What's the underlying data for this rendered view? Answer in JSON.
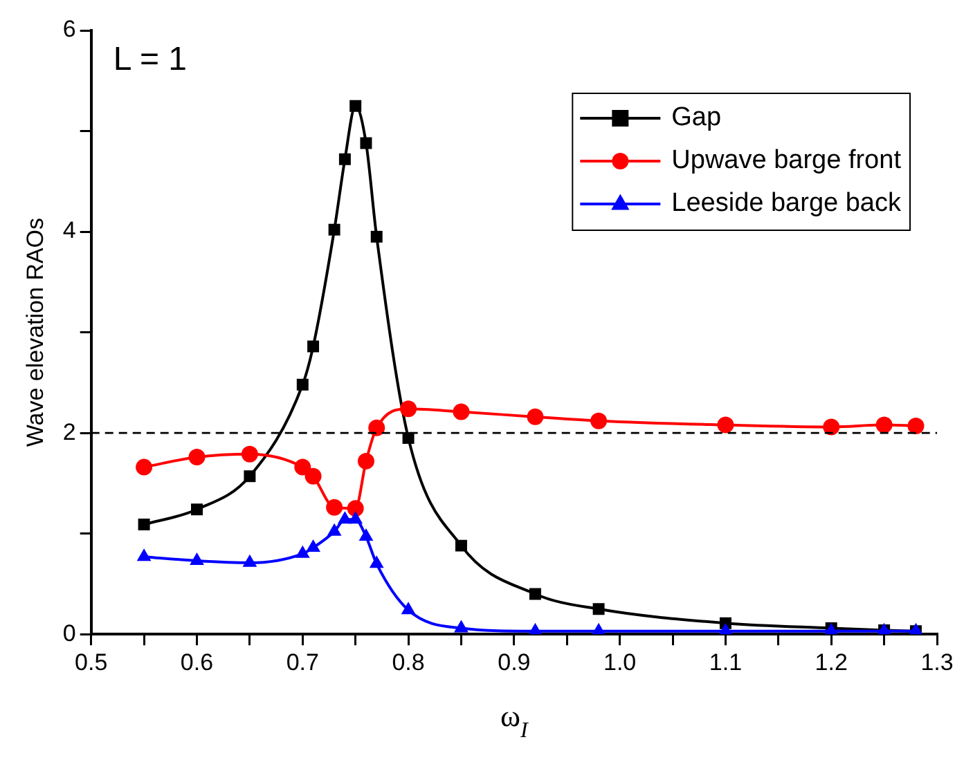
{
  "chart_data": {
    "type": "line",
    "xlabel": "ω$_{I}$",
    "ylabel": "Wave elevation RAOs",
    "annotations": [
      "L = 1"
    ],
    "xlim": [
      0.5,
      1.3
    ],
    "xticks": [
      0.5,
      {
        "value": 0.55,
        "label": null
      },
      0.6,
      {
        "value": 0.65,
        "label": null
      },
      0.7,
      {
        "value": 0.75,
        "label": null
      },
      0.8,
      {
        "value": 0.85,
        "label": null
      },
      0.9,
      {
        "value": 0.95,
        "label": null
      },
      {
        "value": 1,
        "label": "1.0"
      },
      {
        "value": 1.05,
        "label": null
      },
      1.1,
      {
        "value": 1.15,
        "label": null
      },
      1.2,
      {
        "value": 1.25,
        "label": null
      },
      1.3
    ],
    "ylim": [
      0,
      6
    ],
    "yticks": [
      0,
      {
        "value": 1,
        "label": null
      },
      2,
      {
        "value": 3,
        "label": null
      },
      4,
      {
        "value": 5,
        "label": null
      },
      6
    ],
    "series": [
      {
        "name": "Gap",
        "color": "#000000",
        "marker": "square",
        "x": [
          0.55,
          0.6,
          0.65,
          0.7,
          0.71,
          0.73,
          0.74,
          0.75,
          0.76,
          0.77,
          0.8,
          0.85,
          0.92,
          0.98,
          1.1,
          1.2,
          1.25,
          1.28
        ],
        "values": [
          1.09,
          1.24,
          1.57,
          2.48,
          2.86,
          4.02,
          4.72,
          5.25,
          4.88,
          3.95,
          1.95,
          0.88,
          0.4,
          0.25,
          0.11,
          0.06,
          0.04,
          0.03
        ]
      },
      {
        "name": "Upwave barge front",
        "color": "#ff0000",
        "marker": "circle",
        "x": [
          0.55,
          0.6,
          0.65,
          0.7,
          0.71,
          0.73,
          0.75,
          0.76,
          0.77,
          0.8,
          0.85,
          0.92,
          0.98,
          1.1,
          1.2,
          1.25,
          1.28
        ],
        "values": [
          1.66,
          1.76,
          1.79,
          1.66,
          1.57,
          1.26,
          1.25,
          1.72,
          2.05,
          2.24,
          2.21,
          2.16,
          2.12,
          2.08,
          2.06,
          2.08,
          2.07
        ]
      },
      {
        "name": "Leeside barge back",
        "color": "#0000ff",
        "marker": "triangle",
        "x": [
          0.55,
          0.6,
          0.65,
          0.7,
          0.71,
          0.73,
          0.74,
          0.75,
          0.76,
          0.77,
          0.8,
          0.85,
          0.92,
          0.98,
          1.1,
          1.2,
          1.25,
          1.28
        ],
        "values": [
          0.77,
          0.73,
          0.71,
          0.8,
          0.86,
          1.02,
          1.14,
          1.14,
          0.97,
          0.7,
          0.24,
          0.06,
          0.03,
          0.03,
          0.03,
          0.03,
          0.03,
          0.03
        ]
      }
    ],
    "ref_lines": [
      {
        "axis": "y",
        "value": 2,
        "color": "#000000",
        "line_style": "dashed"
      }
    ],
    "legend": "top right",
    "grid": false
  }
}
